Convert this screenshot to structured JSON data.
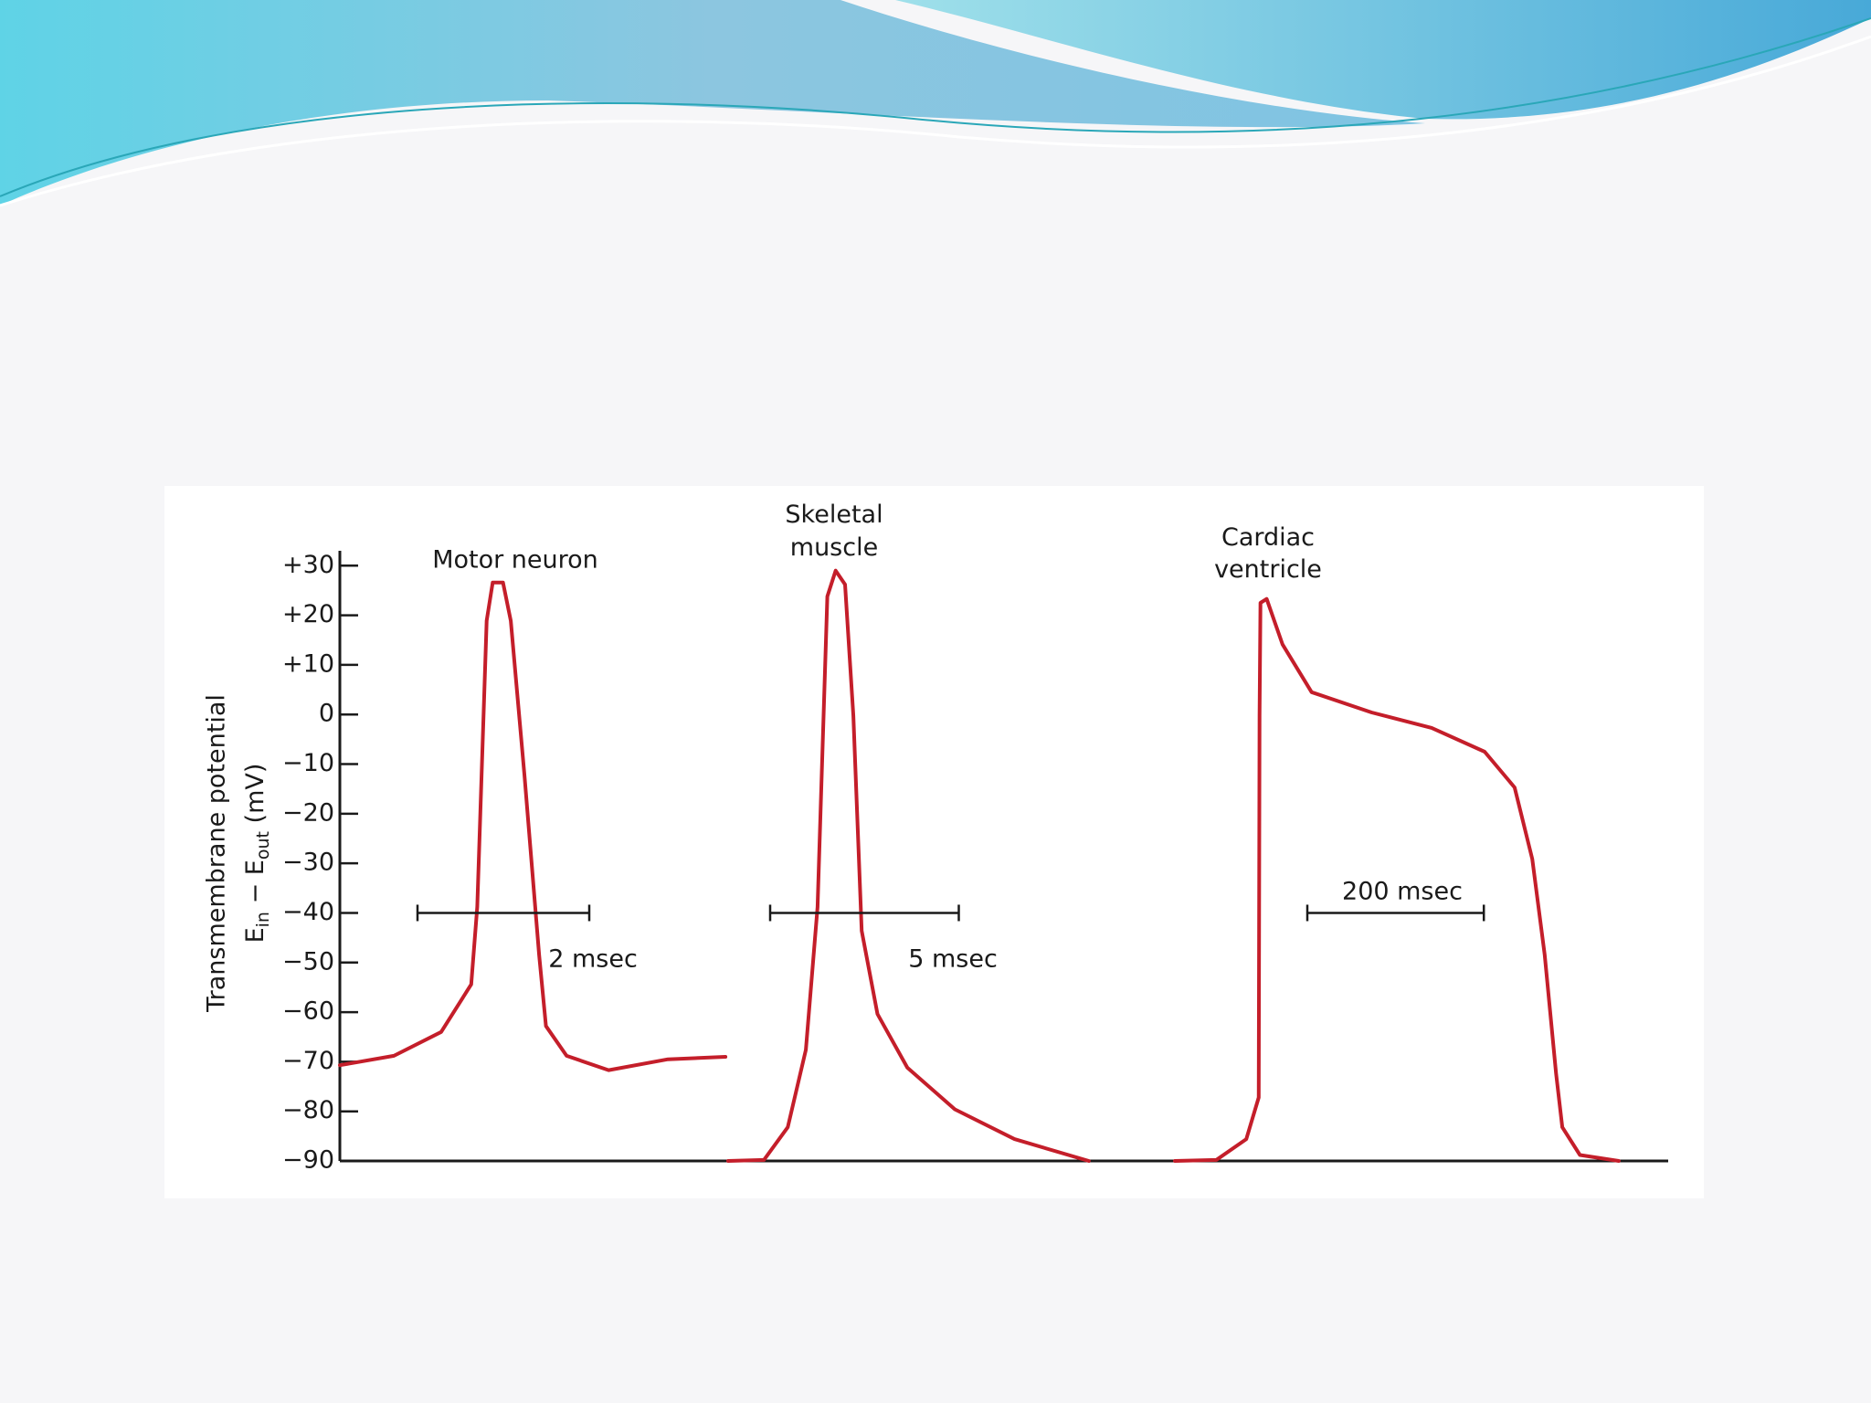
{
  "chart_data": {
    "type": "line",
    "ylabel": "Transmembrane potential",
    "ylabel2_parts": [
      "E",
      "in",
      " − E",
      "out",
      " (mV)"
    ],
    "ylim": [
      -90,
      33
    ],
    "yticks": [
      {
        "value": 30,
        "label": "+30"
      },
      {
        "value": 20,
        "label": "+20"
      },
      {
        "value": 10,
        "label": "+10"
      },
      0,
      {
        "value": -10,
        "label": "−10"
      },
      {
        "value": -20,
        "label": "−20"
      },
      {
        "value": -30,
        "label": "−30"
      },
      {
        "value": -40,
        "label": "−40"
      },
      {
        "value": -50,
        "label": "−50"
      },
      {
        "value": -60,
        "label": "−60"
      },
      {
        "value": -70,
        "label": "−70"
      },
      {
        "value": -80,
        "label": "−80"
      },
      {
        "value": -90,
        "label": "−90"
      }
    ],
    "series": [
      {
        "name": "Motor neuron",
        "color": "#c41e2a",
        "x": [
          0,
          0.63,
          1.18,
          1.53,
          1.6,
          1.71,
          1.78,
          1.9,
          1.99,
          2.15,
          2.32,
          2.4,
          2.64,
          3.13,
          3.82,
          4.49
        ],
        "values": [
          -70.7,
          -68.8,
          -64.0,
          -54.4,
          -38.8,
          18.9,
          26.6,
          26.6,
          18.9,
          -12.3,
          -48.4,
          -62.8,
          -68.8,
          -71.7,
          -69.5,
          -69.0
        ],
        "scale_bar": {
          "value": 2,
          "label": "2 msec"
        }
      },
      {
        "name": "Skeletal muscle",
        "color": "#c41e2a",
        "x": [
          0,
          0.95,
          1.58,
          2.06,
          2.37,
          2.63,
          2.85,
          3.1,
          3.32,
          3.54,
          3.96,
          4.75,
          6.01,
          7.59,
          9.56
        ],
        "values": [
          -90,
          -89.8,
          -83.2,
          -67.6,
          -38.8,
          23.8,
          29.0,
          26.2,
          -0.3,
          -43.6,
          -60.4,
          -71.2,
          -79.6,
          -85.6,
          -90
        ],
        "scale_bar": {
          "value": 5,
          "label": "5 msec"
        }
      },
      {
        "name": "Cardiac ventricle",
        "color": "#c41e2a",
        "x": [
          0,
          47,
          81,
          95,
          96,
          97,
          104,
          122,
          155,
          223,
          291,
          351,
          385,
          405,
          419,
          432,
          439,
          459,
          503
        ],
        "values": [
          -90,
          -89.8,
          -85.6,
          -77.2,
          -0.3,
          22.5,
          23.3,
          14.1,
          4.5,
          0.4,
          -2.7,
          -7.5,
          -14.7,
          -29.1,
          -48.4,
          -72.4,
          -83.2,
          -88.8,
          -90
        ],
        "scale_bar": {
          "value": 200,
          "label": "200 msec"
        }
      }
    ]
  }
}
